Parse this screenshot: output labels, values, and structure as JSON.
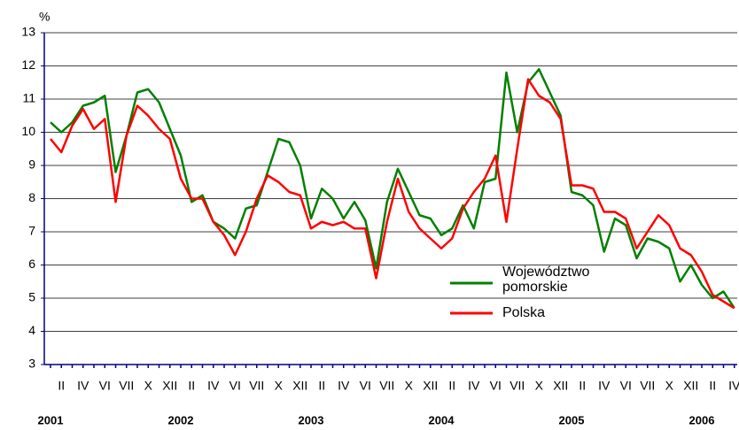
{
  "chart_data": {
    "type": "line",
    "y_label": "%",
    "ylim": [
      3,
      13
    ],
    "yticks": [
      3,
      4,
      5,
      6,
      7,
      8,
      9,
      10,
      11,
      12,
      13
    ],
    "grid": true,
    "legend": "center-right",
    "categories": [
      null,
      "II",
      null,
      "IV",
      null,
      "VI",
      null,
      "VII",
      null,
      "X",
      null,
      "XII",
      null,
      "II",
      null,
      "IV",
      null,
      "VI",
      null,
      "VII",
      null,
      "X",
      null,
      "XII",
      null,
      "II",
      null,
      "IV",
      null,
      "VI",
      null,
      "VII",
      null,
      "X",
      null,
      "XII",
      null,
      "II",
      null,
      "IV",
      null,
      "VI",
      null,
      "VII",
      null,
      "X",
      null,
      "XII",
      null,
      "II",
      null,
      "IV",
      null,
      "VI",
      null,
      "VII",
      null,
      "X",
      null,
      "XII",
      null,
      "II",
      null,
      "IV"
    ],
    "years": [
      "2001",
      "2002",
      "2003",
      "2004",
      "2005",
      "2006"
    ],
    "series": [
      {
        "name": "Województwo pomorskie",
        "color": "#008000",
        "values": [
          10.3,
          10.0,
          10.3,
          10.8,
          10.9,
          11.1,
          8.8,
          9.9,
          11.2,
          11.3,
          10.9,
          10.1,
          9.3,
          7.9,
          8.1,
          7.3,
          7.1,
          6.8,
          7.7,
          7.8,
          8.8,
          9.8,
          9.7,
          9.0,
          7.4,
          8.3,
          8.0,
          7.4,
          7.9,
          7.35,
          5.9,
          7.9,
          8.9,
          8.2,
          7.5,
          7.4,
          6.9,
          7.1,
          7.8,
          7.1,
          8.5,
          8.6,
          11.8,
          10.0,
          11.5,
          11.9,
          11.2,
          10.5,
          8.2,
          8.1,
          7.8,
          6.4,
          7.4,
          7.2,
          6.2,
          6.8,
          6.7,
          6.5,
          5.5,
          6.0,
          5.4,
          5.0,
          5.2,
          4.7
        ]
      },
      {
        "name": "Polska",
        "color": "#ff0000",
        "values": [
          9.8,
          9.4,
          10.2,
          10.7,
          10.1,
          10.4,
          7.9,
          9.9,
          10.8,
          10.5,
          10.1,
          9.8,
          8.6,
          8.0,
          8.0,
          7.3,
          6.9,
          6.3,
          7.0,
          8.0,
          8.7,
          8.5,
          8.2,
          8.1,
          7.1,
          7.3,
          7.2,
          7.3,
          7.1,
          7.1,
          5.6,
          7.3,
          8.6,
          7.6,
          7.1,
          6.8,
          6.5,
          6.8,
          7.7,
          8.2,
          8.6,
          9.3,
          7.3,
          9.5,
          11.6,
          11.1,
          10.9,
          10.4,
          8.4,
          8.4,
          8.3,
          7.6,
          7.6,
          7.4,
          6.5,
          7.0,
          7.5,
          7.2,
          6.5,
          6.3,
          5.8,
          5.1,
          4.9,
          4.7
        ]
      }
    ]
  }
}
